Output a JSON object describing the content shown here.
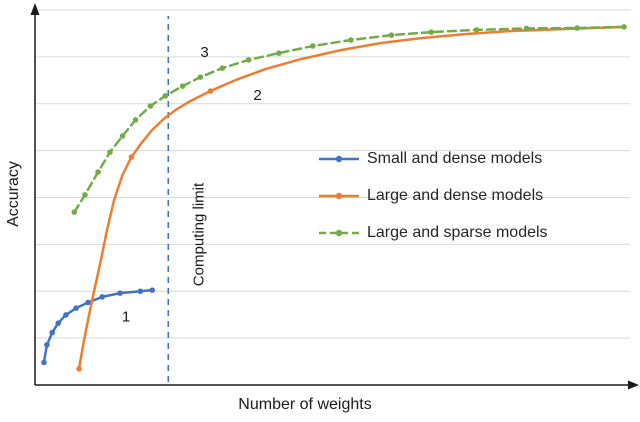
{
  "chart_data": {
    "type": "line",
    "title": "",
    "xlabel": "Number of  weights",
    "ylabel": "Accuracy",
    "x_axis": {
      "min": 0,
      "max": 100,
      "ticks_visible": false
    },
    "y_axis": {
      "min": 0,
      "max": 100,
      "ticks_visible": false
    },
    "grid": {
      "y_values": [
        12.5,
        25,
        37.5,
        50,
        62.5,
        75,
        87.5,
        100
      ],
      "color": "#d9d9d9"
    },
    "axis_color": "#1a1a1a",
    "computing_limit": {
      "x": 22.4,
      "label": "Computing limit",
      "color": "#4472c4"
    },
    "annotations": [
      {
        "text": "1",
        "x": 15.3,
        "y": 18.0
      },
      {
        "text": "2",
        "x": 37.4,
        "y": 77.0
      },
      {
        "text": "3",
        "x": 28.5,
        "y": 88.5
      }
    ],
    "legend_position": "center-right-inside",
    "series": [
      {
        "name": "Small and dense models",
        "color": "#4472c4",
        "style": "solid",
        "marker": "dot",
        "dots_idx": "all",
        "x": [
          1.5,
          2.0,
          2.9,
          3.9,
          5.2,
          6.9,
          8.9,
          11.3,
          14.3,
          17.7,
          19.7
        ],
        "y": [
          6.0,
          10.7,
          14.0,
          16.5,
          18.7,
          20.5,
          22.0,
          23.5,
          24.5,
          25.0,
          25.3
        ]
      },
      {
        "name": "Large and dense models",
        "color": "#ed7d31",
        "style": "solid",
        "marker": "dot",
        "dots_idx": [
          0,
          8,
          14
        ],
        "x": [
          7.4,
          8.1,
          8.9,
          9.9,
          11.0,
          12.1,
          13.3,
          14.7,
          16.2,
          17.9,
          19.7,
          21.6,
          23.6,
          26.1,
          29.5,
          33.7,
          38.8,
          44.7,
          51.4,
          58.2,
          64.9,
          72.5,
          80.1,
          88.5,
          99.0
        ],
        "y": [
          4.3,
          10.7,
          17.3,
          24.8,
          32.8,
          41.3,
          49.3,
          56.0,
          60.8,
          64.5,
          68.0,
          70.9,
          73.3,
          75.7,
          78.4,
          81.3,
          84.3,
          86.9,
          89.3,
          91.2,
          92.5,
          93.6,
          94.4,
          94.9,
          95.5
        ]
      },
      {
        "name": "Large and sparse models",
        "color": "#70ad47",
        "style": "dashed",
        "marker": "dot",
        "dots_idx": "all",
        "x": [
          6.6,
          8.4,
          10.6,
          12.6,
          14.7,
          16.9,
          19.4,
          21.9,
          24.8,
          27.8,
          31.5,
          35.9,
          41.0,
          46.7,
          53.1,
          59.9,
          66.6,
          74.2,
          82.6,
          91.1,
          99.0
        ],
        "y": [
          46.1,
          50.7,
          56.8,
          62.1,
          66.4,
          70.7,
          74.4,
          77.1,
          79.7,
          82.1,
          84.5,
          86.7,
          88.5,
          90.4,
          92.0,
          93.3,
          94.1,
          94.7,
          95.1,
          95.2,
          95.5
        ]
      }
    ]
  }
}
